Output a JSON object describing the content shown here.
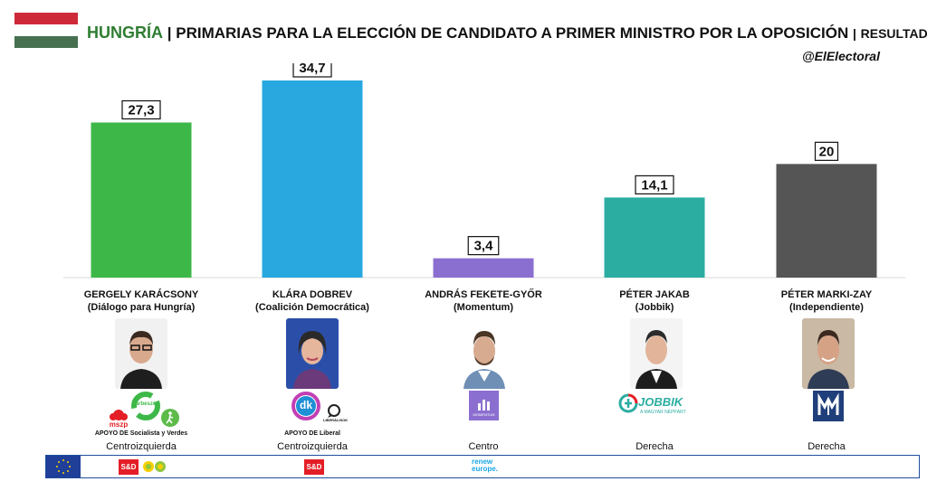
{
  "header": {
    "country": "HUNGRÍA",
    "sep1": "|",
    "title": "PRIMARIAS PARA LA ELECCIÓN DE CANDIDATO A PRIMER MINISTRO POR LA OPOSICIÓN",
    "sep2": "|",
    "subtitle": "RESULTADOS",
    "handle": "@ElElectoral",
    "flag_colors": [
      "#ce2939",
      "#ffffff",
      "#477050"
    ]
  },
  "chart_data": {
    "type": "bar",
    "categories": [
      "GERGELY KARÁCSONY",
      "KLÁRA DOBREV",
      "ANDRÁS FEKETE-GYŐR",
      "PÉTER JAKAB",
      "PÉTER MARKI-ZAY"
    ],
    "values": [
      27.3,
      34.7,
      3.4,
      14.1,
      20
    ],
    "value_labels": [
      "27,3",
      "34,7",
      "3,4",
      "14,1",
      "20"
    ],
    "colors": [
      "#3db848",
      "#29a8e0",
      "#8b6fd0",
      "#2bada2",
      "#555555"
    ],
    "ylim": [
      0,
      40
    ],
    "grid": false,
    "title": "",
    "xlabel": "",
    "ylabel": ""
  },
  "candidates": [
    {
      "name": "GERGELY KARÁCSONY",
      "party": "(Diálogo para Hungría)",
      "ideology": "Centroizquierda",
      "support": "APOYO DE Socialista y Verdes",
      "logos": [
        "mszp",
        "párbeszéd",
        "walk-icon"
      ]
    },
    {
      "name": "KLÁRA DOBREV",
      "party": "(Coalición Democrática)",
      "ideology": "Centroizquierda",
      "support": "APOYO DE Liberal",
      "logos": [
        "dk",
        "LIBERÁLISOK"
      ]
    },
    {
      "name": "ANDRÁS FEKETE-GYŐR",
      "party": "(Momentum)",
      "ideology": "Centro",
      "support": "",
      "logos": [
        "MOMENTUM"
      ]
    },
    {
      "name": "PÉTER JAKAB",
      "party": "(Jobbik)",
      "ideology": "Derecha",
      "support": "",
      "logos": [
        "JOBBIK",
        "A MAGYAR NÉPPÁRT"
      ]
    },
    {
      "name": "PÉTER MARKI-ZAY",
      "party": "(Independiente)",
      "ideology": "Derecha",
      "support": "",
      "logos": [
        "MMM"
      ]
    }
  ],
  "logos": {
    "mszp": "mszp",
    "parbeszed": "párbeszéd",
    "dk": "dk",
    "liberalisok": "LIBERÁLISOK",
    "momentum": "MOMENTUM",
    "jobbik": "JOBBIK",
    "jobbik_sub": "A MAGYAR NÉPPÁRT"
  },
  "eu_groups": {
    "sd_label": "S&D",
    "renew_line1": "renew",
    "renew_line2": "europe."
  }
}
